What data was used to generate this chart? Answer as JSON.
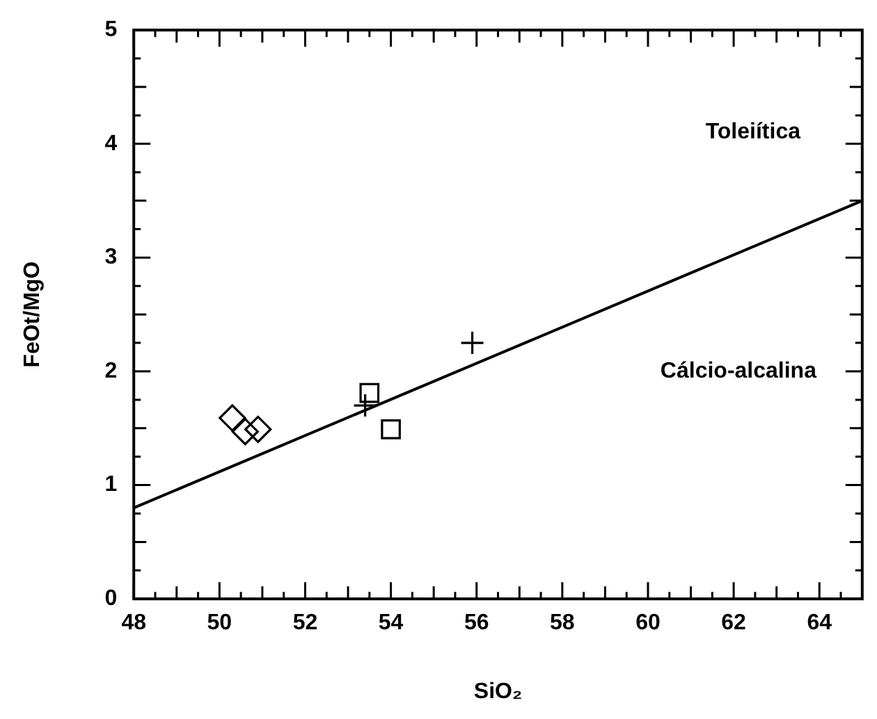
{
  "chart_data": {
    "type": "scatter",
    "xlabel": "SiO₂",
    "ylabel": "FeOt/MgO",
    "xlim": [
      48,
      65
    ],
    "ylim": [
      0,
      5
    ],
    "xticks": [
      48,
      {
        "value": 48.5,
        "label": null
      },
      {
        "value": 49,
        "label": null
      },
      {
        "value": 49.5,
        "label": null
      },
      50,
      {
        "value": 50.5,
        "label": null
      },
      {
        "value": 51,
        "label": null
      },
      {
        "value": 51.5,
        "label": null
      },
      52,
      {
        "value": 52.5,
        "label": null
      },
      {
        "value": 53,
        "label": null
      },
      {
        "value": 53.5,
        "label": null
      },
      54,
      {
        "value": 54.5,
        "label": null
      },
      {
        "value": 55,
        "label": null
      },
      {
        "value": 55.5,
        "label": null
      },
      56,
      {
        "value": 56.5,
        "label": null
      },
      {
        "value": 57,
        "label": null
      },
      {
        "value": 57.5,
        "label": null
      },
      58,
      {
        "value": 58.5,
        "label": null
      },
      {
        "value": 59,
        "label": null
      },
      {
        "value": 59.5,
        "label": null
      },
      60,
      {
        "value": 60.5,
        "label": null
      },
      {
        "value": 61,
        "label": null
      },
      {
        "value": 61.5,
        "label": null
      },
      62,
      {
        "value": 62.5,
        "label": null
      },
      {
        "value": 63,
        "label": null
      },
      {
        "value": 63.5,
        "label": null
      },
      64,
      {
        "value": 64.5,
        "label": null
      }
    ],
    "yticks": [
      0,
      {
        "value": 0.25,
        "label": null
      },
      {
        "value": 0.5,
        "label": null
      },
      {
        "value": 0.75,
        "label": null
      },
      1,
      {
        "value": 1.25,
        "label": null
      },
      {
        "value": 1.5,
        "label": null
      },
      {
        "value": 1.75,
        "label": null
      },
      2,
      {
        "value": 2.25,
        "label": null
      },
      {
        "value": 2.5,
        "label": null
      },
      {
        "value": 2.75,
        "label": null
      },
      3,
      {
        "value": 3.25,
        "label": null
      },
      {
        "value": 3.5,
        "label": null
      },
      {
        "value": 3.75,
        "label": null
      },
      4,
      {
        "value": 4.25,
        "label": null
      },
      {
        "value": 4.5,
        "label": null
      },
      {
        "value": 4.75,
        "label": null
      },
      5
    ],
    "grid": false,
    "legend": false,
    "series": [
      {
        "marker": "diamond",
        "color": "#000000",
        "x": [
          50.3,
          50.6,
          50.9
        ],
        "values": [
          1.59,
          1.47,
          1.49
        ]
      },
      {
        "marker": "square",
        "color": "#000000",
        "x": [
          53.5,
          54.0
        ],
        "values": [
          1.81,
          1.49
        ]
      },
      {
        "marker": "cross",
        "color": "#000000",
        "x": [
          53.4,
          55.9
        ],
        "values": [
          1.7,
          2.25
        ]
      },
      {
        "type": "line",
        "marker": "none",
        "line_style": "solid",
        "color": "#000000",
        "x": [
          48,
          65
        ],
        "values": [
          0.8,
          3.5
        ]
      }
    ],
    "annotations": [
      "Toleiítica",
      "Cálcio-alcalina"
    ]
  }
}
